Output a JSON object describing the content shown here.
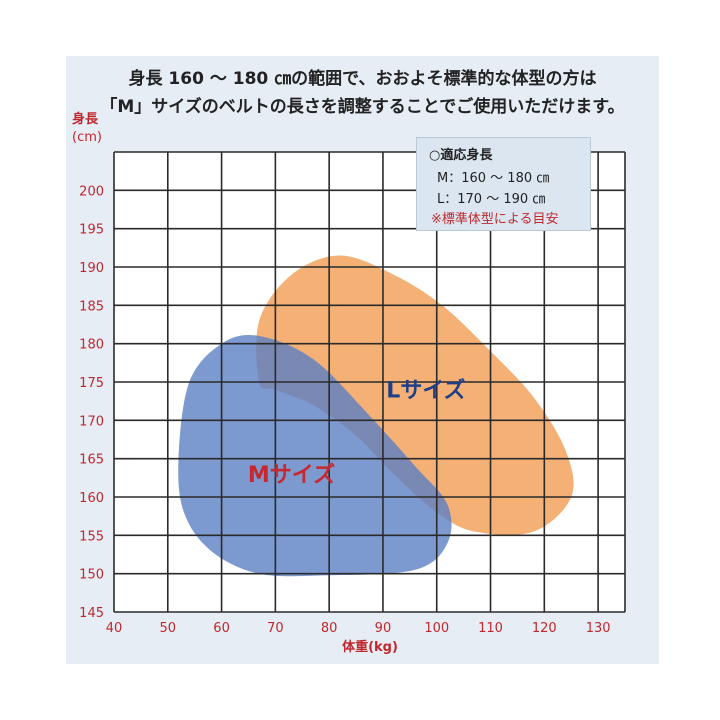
{
  "header": {
    "line1": "身長 160 ～ 180 ㎝の範囲で、おおよそ標準的な体型の方は",
    "line2": "「M」サイズのベルトの長さを調整することでご使用いただけます。"
  },
  "legend": {
    "title": "○適応身長",
    "m_range": "M：160 ～ 180 ㎝",
    "l_range": "L：170 ～ 190 ㎝",
    "note": "※標準体型による目安"
  },
  "colors": {
    "grid": "#2a2a2a",
    "axis_text": "#c0282d",
    "m_fill": "#5b7fc4",
    "l_fill": "#f2a25d",
    "m_label": "#c8282d",
    "l_label": "#1f3f8a"
  },
  "chart_data": {
    "type": "area",
    "xlabel": "体重(kg)",
    "ylabel_line1": "身長",
    "ylabel_line2": "(cm)",
    "xlim": [
      40,
      135
    ],
    "ylim": [
      145,
      205
    ],
    "x_ticks": [
      40,
      50,
      60,
      70,
      80,
      90,
      100,
      110,
      120,
      130
    ],
    "y_ticks": [
      145,
      150,
      155,
      160,
      165,
      170,
      175,
      180,
      185,
      190,
      195,
      200
    ],
    "grid": true,
    "series": [
      {
        "name": "Lサイズ",
        "region": [
          [
            67,
            175
          ],
          [
            67,
            183
          ],
          [
            73,
            189
          ],
          [
            82,
            191.5
          ],
          [
            92,
            189
          ],
          [
            101,
            185
          ],
          [
            110,
            179
          ],
          [
            118,
            173
          ],
          [
            124,
            166
          ],
          [
            125,
            160
          ],
          [
            118,
            155.5
          ],
          [
            107,
            155.5
          ],
          [
            100,
            158
          ],
          [
            92,
            163
          ],
          [
            85,
            168
          ],
          [
            77,
            172
          ],
          [
            70,
            174
          ]
        ]
      },
      {
        "name": "Mサイズ",
        "region": [
          [
            52,
            165
          ],
          [
            54,
            175
          ],
          [
            60,
            180
          ],
          [
            67,
            181
          ],
          [
            77,
            178
          ],
          [
            87,
            171
          ],
          [
            96,
            164
          ],
          [
            102,
            159
          ],
          [
            102,
            154
          ],
          [
            96,
            150.5
          ],
          [
            80,
            149.8
          ],
          [
            67,
            150
          ],
          [
            58,
            153
          ],
          [
            53,
            158
          ]
        ]
      }
    ]
  }
}
